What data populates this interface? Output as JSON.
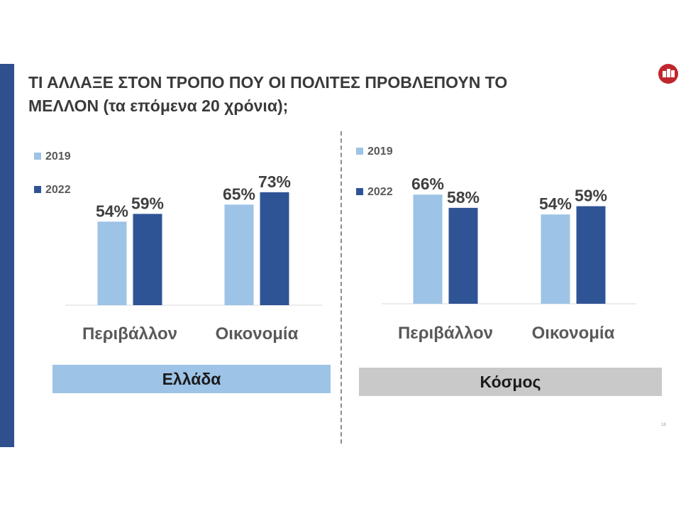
{
  "title_lines": [
    "ΤΙ ΑΛΛΑΞΕ ΣΤΟΝ ΤΡΟΠΟ ΠΟΥ ΟΙ ΠΟΛΙΤΕΣ ΠΡΟΒΛΕΠΟΥΝ ΤΟ",
    "ΜΕΛΛΟΝ (τα επόμενα 20 χρόνια);"
  ],
  "page_number": "18",
  "colors": {
    "series_2019": "#9dc3e6",
    "series_2022": "#2f5496",
    "side_bar": "#2f4f8f",
    "logo": "#c0272d"
  },
  "logo_icon": "brand-logo-icon",
  "chart_data": [
    {
      "type": "bar",
      "region_label": "Ελλάδα",
      "categories": [
        "Περιβάλλον",
        "Οικονομία"
      ],
      "series": [
        {
          "name": "2019",
          "values": [
            54,
            65
          ],
          "labels": [
            "54%",
            "65%"
          ]
        },
        {
          "name": "2022",
          "values": [
            59,
            73
          ],
          "labels": [
            "59%",
            "73%"
          ]
        }
      ],
      "unit": "%",
      "ylim": [
        0,
        100
      ],
      "grid": false,
      "legend_position": "top-left"
    },
    {
      "type": "bar",
      "region_label": "Κόσμος",
      "categories": [
        "Περιβάλλον",
        "Οικονομία"
      ],
      "series": [
        {
          "name": "2019",
          "values": [
            66,
            54
          ],
          "labels": [
            "66%",
            "54%"
          ]
        },
        {
          "name": "2022",
          "values": [
            58,
            59
          ],
          "labels": [
            "58%",
            "59%"
          ]
        }
      ],
      "unit": "%",
      "ylim": [
        0,
        100
      ],
      "grid": false,
      "legend_position": "top-left"
    }
  ]
}
